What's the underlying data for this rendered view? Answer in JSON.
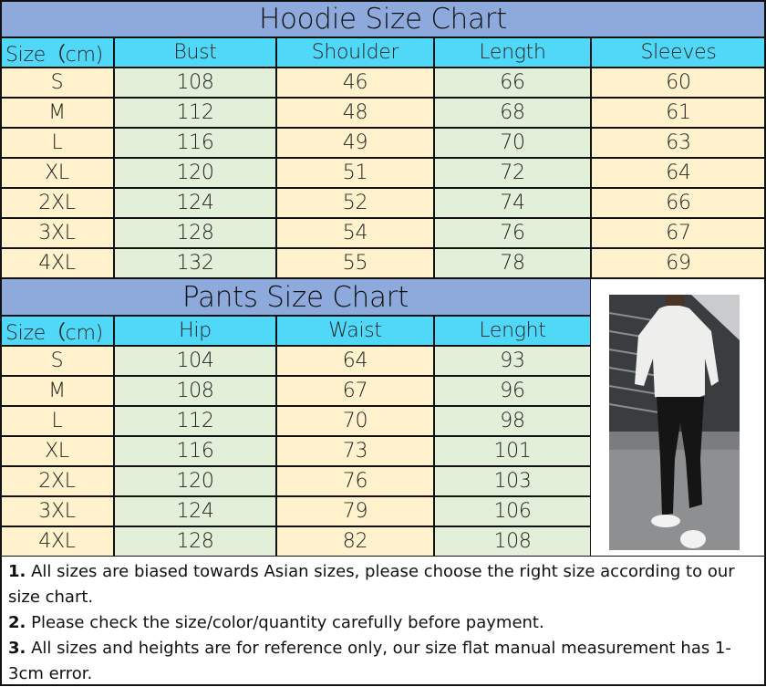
{
  "hoodie": {
    "title": "Hoodie Size Chart",
    "headers": [
      "Size（cm)",
      "Bust",
      "Shoulder",
      "Length",
      "Sleeves"
    ],
    "rows": [
      [
        "S",
        "108",
        "46",
        "66",
        "60"
      ],
      [
        "M",
        "112",
        "48",
        "68",
        "61"
      ],
      [
        "L",
        "116",
        "49",
        "70",
        "63"
      ],
      [
        "XL",
        "120",
        "51",
        "72",
        "64"
      ],
      [
        "2XL",
        "124",
        "52",
        "74",
        "66"
      ],
      [
        "3XL",
        "128",
        "54",
        "76",
        "67"
      ],
      [
        "4XL",
        "132",
        "55",
        "78",
        "69"
      ]
    ]
  },
  "pants": {
    "title": "Pants Size Chart",
    "headers": [
      "Size（cm)",
      "Hip",
      "Waist",
      "Lenght"
    ],
    "rows": [
      [
        "S",
        "104",
        "64",
        "93"
      ],
      [
        "M",
        "108",
        "67",
        "96"
      ],
      [
        "L",
        "112",
        "70",
        "98"
      ],
      [
        "XL",
        "116",
        "73",
        "101"
      ],
      [
        "2XL",
        "120",
        "76",
        "103"
      ],
      [
        "3XL",
        "124",
        "79",
        "106"
      ],
      [
        "4XL",
        "128",
        "82",
        "108"
      ]
    ]
  },
  "notes": [
    {
      "num": "1.",
      "text": " All sizes are biased towards Asian sizes, please choose the right size according to our size chart."
    },
    {
      "num": "2.",
      "text": " Please check the size/color/quantity carefully before payment."
    },
    {
      "num": "3.",
      "text": " All sizes and heights are for reference only, our size flat manual measurement has  1-3cm error."
    }
  ],
  "colors": {
    "title_bg": "#8eaadc",
    "header_bg": "#4fd8f8",
    "yellow": "#fff2cc",
    "green": "#e2efd9"
  }
}
